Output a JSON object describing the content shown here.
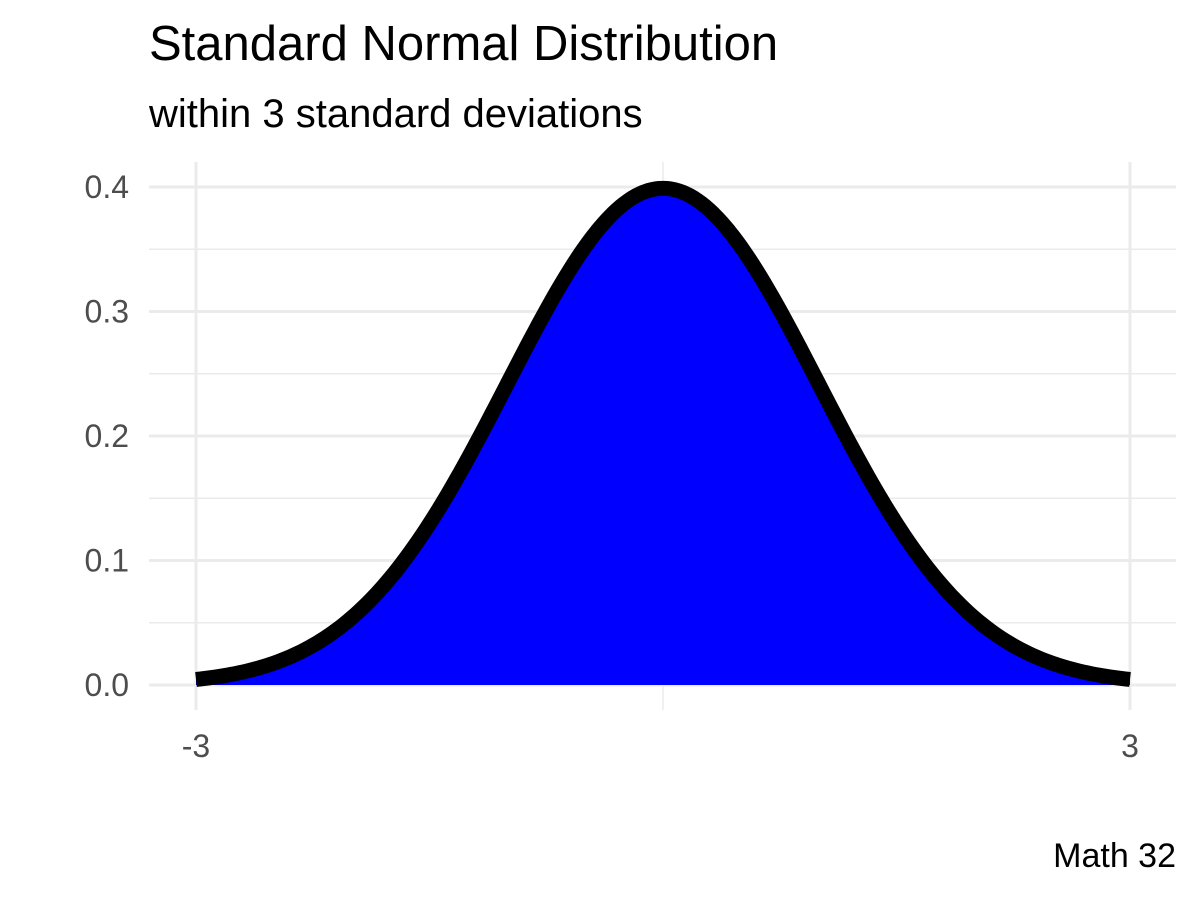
{
  "chart_data": {
    "type": "area",
    "title": "Standard Normal Distribution",
    "subtitle": "within 3 standard deviations",
    "caption": "Math 32",
    "xlabel": "",
    "ylabel": "",
    "distribution": "standard normal density",
    "mean": 0,
    "sd": 1,
    "xlim": [
      -3,
      3
    ],
    "ylim": [
      0,
      0.4
    ],
    "x_ticks": [
      {
        "value": -3,
        "label": "-3"
      },
      {
        "value": 3,
        "label": "3"
      }
    ],
    "x_minor_gridlines": [
      0
    ],
    "y_ticks": [
      {
        "value": 0.0,
        "label": "0.0"
      },
      {
        "value": 0.1,
        "label": "0.1"
      },
      {
        "value": 0.2,
        "label": "0.2"
      },
      {
        "value": 0.3,
        "label": "0.3"
      },
      {
        "value": 0.4,
        "label": "0.4"
      }
    ],
    "series": [
      {
        "x": [
          -3,
          -2.5,
          -2,
          -1.5,
          -1,
          -0.5,
          0,
          0.5,
          1,
          1.5,
          2,
          2.5,
          3
        ],
        "y": [
          0.0044,
          0.0175,
          0.054,
          0.1295,
          0.242,
          0.3521,
          0.3989,
          0.3521,
          0.242,
          0.1295,
          0.054,
          0.0175,
          0.0044
        ]
      }
    ],
    "fill_color": "#0000ff",
    "line_color": "#000000",
    "grid": true,
    "legend": "none"
  }
}
